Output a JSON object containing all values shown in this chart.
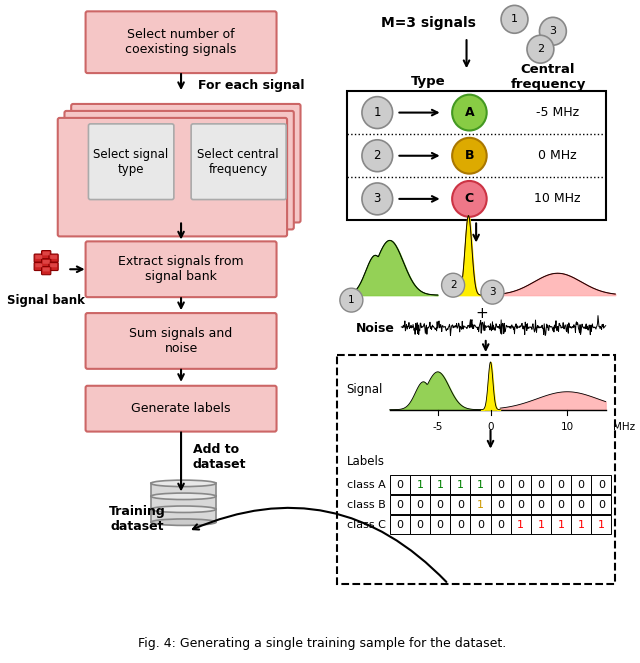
{
  "title": "Fig. 4: Generating a single training sample for the dataset.",
  "bg_color": "#ffffff",
  "pink_face": "#f5c6c6",
  "pink_edge": "#cc6666",
  "gray_face": "#e8e8e8",
  "gray_edge": "#aaaaaa",
  "label_rows": [
    {
      "label": "class A",
      "values": [
        0,
        1,
        1,
        1,
        1,
        0,
        0,
        0,
        0,
        0,
        0
      ],
      "colors": [
        "black",
        "green",
        "green",
        "green",
        "green",
        "black",
        "black",
        "black",
        "black",
        "black",
        "black"
      ]
    },
    {
      "label": "class B",
      "values": [
        0,
        0,
        0,
        0,
        1,
        0,
        0,
        0,
        0,
        0,
        0
      ],
      "colors": [
        "black",
        "black",
        "black",
        "black",
        "#cc9900",
        "black",
        "black",
        "black",
        "black",
        "black",
        "black"
      ]
    },
    {
      "label": "class C",
      "values": [
        0,
        0,
        0,
        0,
        0,
        0,
        1,
        1,
        1,
        1,
        1
      ],
      "colors": [
        "black",
        "black",
        "black",
        "black",
        "black",
        "black",
        "red",
        "red",
        "red",
        "red",
        "red"
      ]
    }
  ]
}
